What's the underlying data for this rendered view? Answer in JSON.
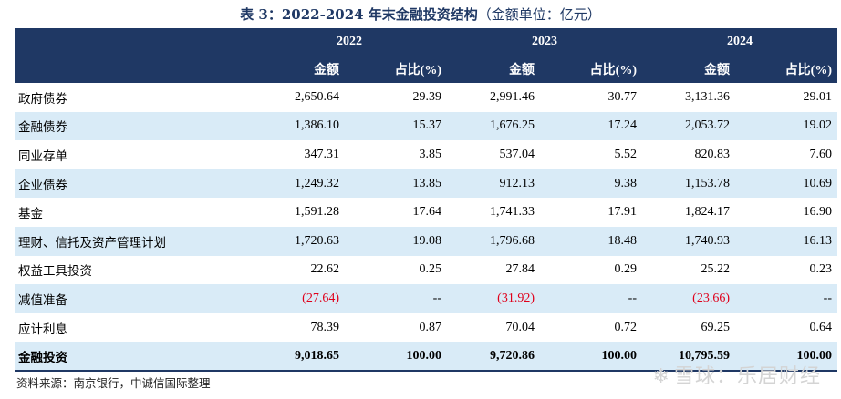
{
  "title": {
    "main": "表 3：2022-2024 年末金融投资结构",
    "note": "（金额单位：亿元）"
  },
  "header": {
    "years": [
      "2022",
      "2023",
      "2024"
    ],
    "amount_label": "金额",
    "ratio_label": "占比(%)"
  },
  "rows": [
    {
      "label": "政府债券",
      "v": [
        "2,650.64",
        "29.39",
        "2,991.46",
        "30.77",
        "3,131.36",
        "29.01"
      ]
    },
    {
      "label": "金融债券",
      "v": [
        "1,386.10",
        "15.37",
        "1,676.25",
        "17.24",
        "2,053.72",
        "19.02"
      ]
    },
    {
      "label": "同业存单",
      "v": [
        "347.31",
        "3.85",
        "537.04",
        "5.52",
        "820.83",
        "7.60"
      ]
    },
    {
      "label": "企业债券",
      "v": [
        "1,249.32",
        "13.85",
        "912.13",
        "9.38",
        "1,153.78",
        "10.69"
      ]
    },
    {
      "label": "基金",
      "v": [
        "1,591.28",
        "17.64",
        "1,741.33",
        "17.91",
        "1,824.17",
        "16.90"
      ]
    },
    {
      "label": "理财、信托及资产管理计划",
      "v": [
        "1,720.63",
        "19.08",
        "1,796.68",
        "18.48",
        "1,740.93",
        "16.13"
      ]
    },
    {
      "label": "权益工具投资",
      "v": [
        "22.62",
        "0.25",
        "27.84",
        "0.29",
        "25.22",
        "0.23"
      ]
    },
    {
      "label": "减值准备",
      "v": [
        "(27.64)",
        "--",
        "(31.92)",
        "--",
        "(23.66)",
        "--"
      ]
    },
    {
      "label": "应计利息",
      "v": [
        "78.39",
        "0.87",
        "70.04",
        "0.72",
        "69.25",
        "0.64"
      ]
    },
    {
      "label": "金融投资",
      "v": [
        "9,018.65",
        "100.00",
        "9,720.86",
        "100.00",
        "10,795.59",
        "100.00"
      ]
    }
  ],
  "source": "资料来源：南京银行，中诚信国际整理",
  "watermark": "雪球：乐居财经",
  "colors": {
    "header_bg": "#1f3864",
    "stripe": "#d9ebf7",
    "negative": "#e0001b"
  }
}
